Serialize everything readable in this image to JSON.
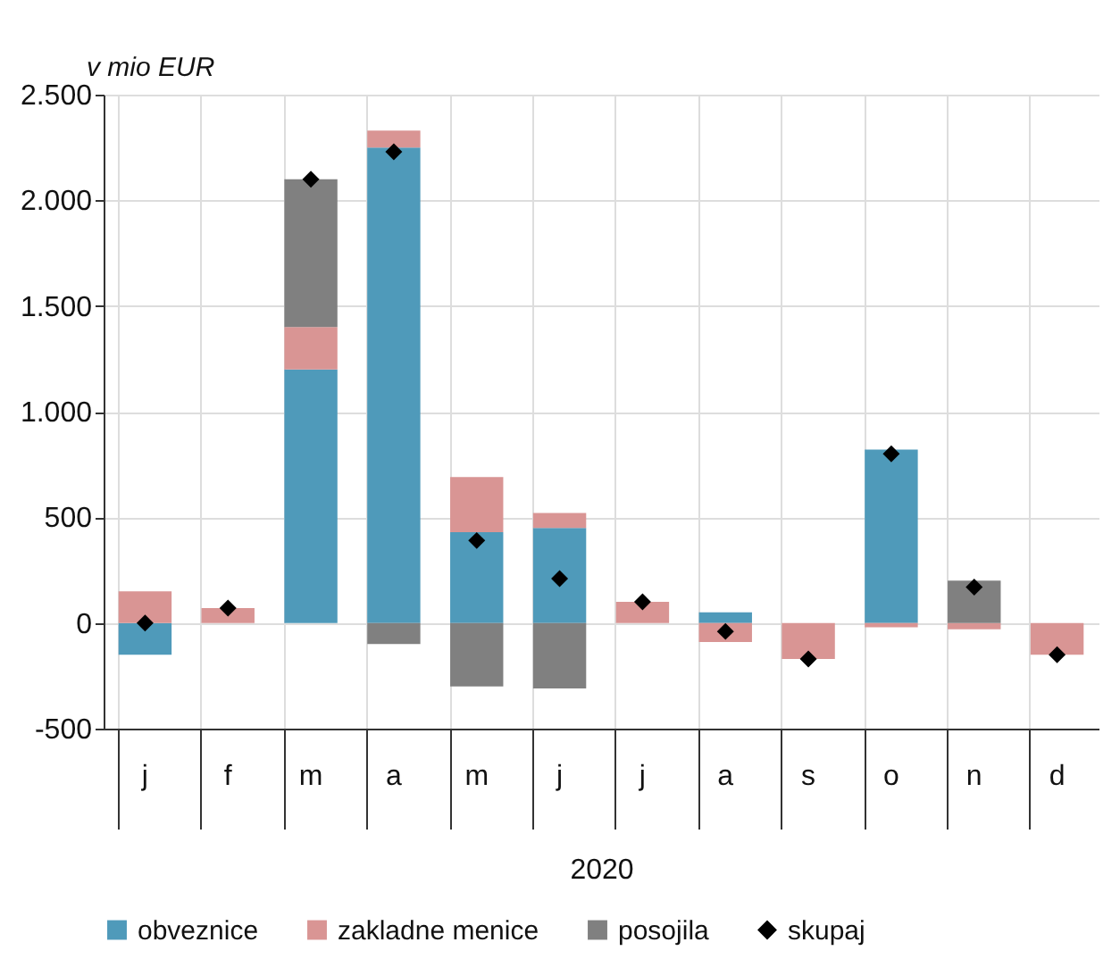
{
  "chart_data": {
    "type": "bar",
    "ylabel": "v mio EUR",
    "xlabel": "2020",
    "stacked": true,
    "grid": true,
    "legend": "bottom",
    "marker": "diamond",
    "categories": [
      "j",
      "f",
      "m",
      "a",
      "m",
      "j",
      "j",
      "a",
      "s",
      "o",
      "n",
      "d"
    ],
    "ylim": [
      -500,
      2500
    ],
    "yticks": [
      {
        "value": -500,
        "label": "-500"
      },
      0,
      500,
      {
        "value": 1000,
        "label": "1.000"
      },
      {
        "value": 1500,
        "label": "1.500"
      },
      {
        "value": 2000,
        "label": "2.000"
      },
      {
        "value": 2500,
        "label": "2.500"
      }
    ],
    "series": [
      {
        "name": "obveznice",
        "color": "#4f9aba",
        "values": [
          -150,
          0,
          1200,
          2250,
          430,
          450,
          0,
          50,
          0,
          820,
          0,
          0
        ]
      },
      {
        "name": "zakladne menice",
        "color": "#d99594",
        "values": [
          150,
          70,
          200,
          80,
          260,
          70,
          100,
          -90,
          -170,
          -20,
          -30,
          -150
        ]
      },
      {
        "name": "posojila",
        "color": "#808080",
        "values": [
          0,
          0,
          700,
          -100,
          -300,
          -310,
          0,
          0,
          0,
          0,
          200,
          0
        ]
      },
      {
        "name": "skupaj",
        "type": "scatter",
        "color": "#000000",
        "values": [
          0,
          70,
          2100,
          2230,
          390,
          210,
          100,
          -40,
          -170,
          800,
          170,
          -150
        ]
      }
    ]
  }
}
